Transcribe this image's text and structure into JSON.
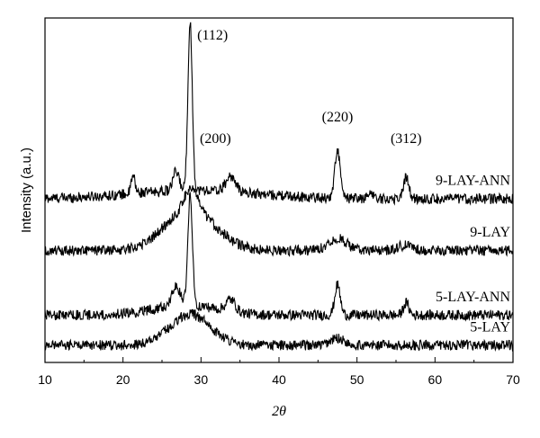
{
  "chart_data": {
    "type": "line",
    "title": "",
    "xlabel": "2θ",
    "ylabel": "Intensity (a.u.)",
    "xlim": [
      10,
      70
    ],
    "x_ticks": [
      "10",
      "20",
      "30",
      "40",
      "50",
      "60",
      "70"
    ],
    "y_ticks_shown": false,
    "grid": false,
    "legend": "none",
    "peak_labels": [
      {
        "text": "(112)",
        "x": 28.6
      },
      {
        "text": "(200)",
        "x": 33.0
      },
      {
        "text": "(220)",
        "x": 47.5
      },
      {
        "text": "(312)",
        "x": 56.3
      }
    ],
    "series": [
      {
        "name": "9-LAY-ANN",
        "baseline": 190,
        "peaks": [
          {
            "x": 21.3,
            "height": 20,
            "width": 0.25
          },
          {
            "x": 26.8,
            "height": 22,
            "width": 0.4
          },
          {
            "x": 28.6,
            "height": 195,
            "width": 0.28
          },
          {
            "x": 33.8,
            "height": 18,
            "width": 0.6
          },
          {
            "x": 47.5,
            "height": 55,
            "width": 0.35
          },
          {
            "x": 51.8,
            "height": 8,
            "width": 0.3
          },
          {
            "x": 56.3,
            "height": 25,
            "width": 0.35
          }
        ],
        "hump": {
          "x": 29.0,
          "height": 10,
          "width": 8
        }
      },
      {
        "name": "9-LAY",
        "baseline": 130,
        "peaks": [
          {
            "x": 28.7,
            "height": 25,
            "width": 0.8
          },
          {
            "x": 47.5,
            "height": 14,
            "width": 1.2
          },
          {
            "x": 56.2,
            "height": 6,
            "width": 1.0
          }
        ],
        "hump": {
          "x": 28.6,
          "height": 48,
          "width": 3.2
        }
      },
      {
        "name": "5-LAY-ANN",
        "baseline": 55,
        "peaks": [
          {
            "x": 26.8,
            "height": 22,
            "width": 0.5
          },
          {
            "x": 28.6,
            "height": 125,
            "width": 0.3
          },
          {
            "x": 33.8,
            "height": 14,
            "width": 0.6
          },
          {
            "x": 47.5,
            "height": 35,
            "width": 0.35
          },
          {
            "x": 56.3,
            "height": 14,
            "width": 0.35
          }
        ],
        "hump": {
          "x": 28.0,
          "height": 12,
          "width": 4
        }
      },
      {
        "name": "5-LAY",
        "baseline": 20,
        "peaks": [
          {
            "x": 47.5,
            "height": 8,
            "width": 0.9
          }
        ],
        "hump": {
          "x": 28.6,
          "height": 36,
          "width": 2.6
        }
      }
    ]
  },
  "colors": {
    "line": "#000000",
    "background": "#ffffff"
  }
}
